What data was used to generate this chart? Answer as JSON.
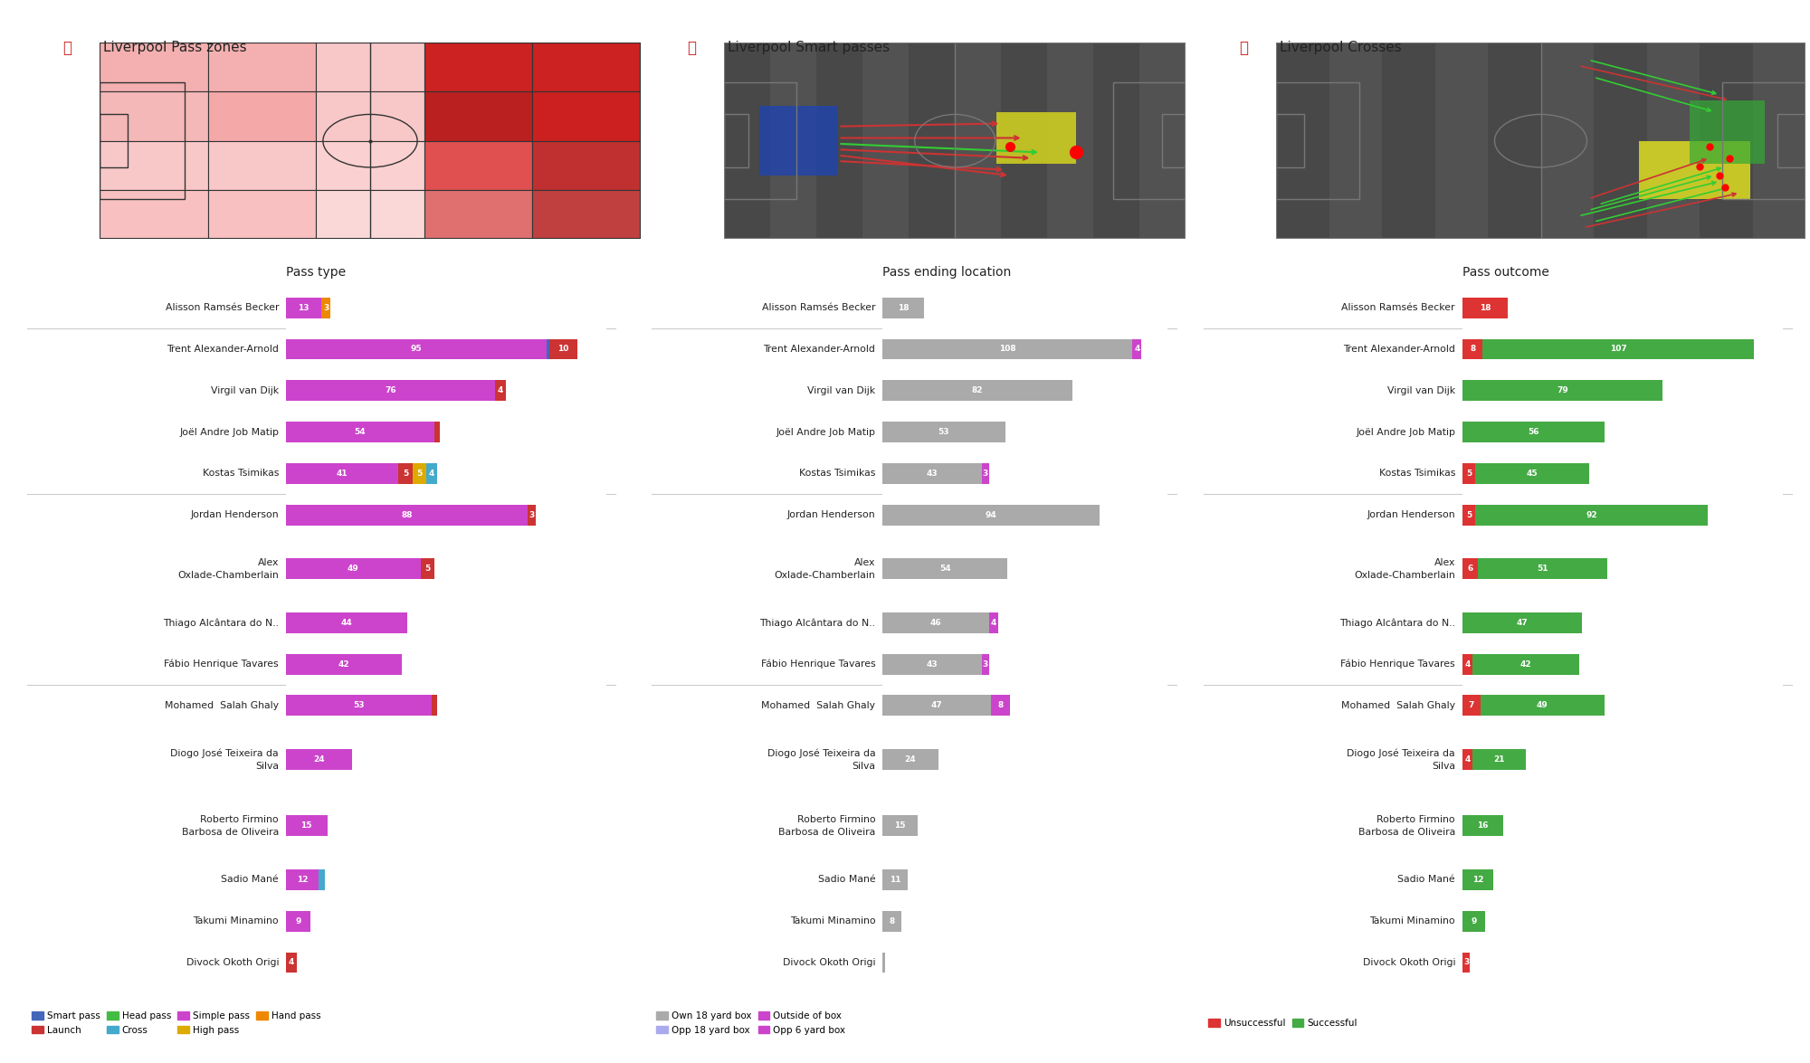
{
  "title1": "Liverpool Pass zones",
  "title2": "Liverpool Smart passes",
  "title3": "Liverpool Crosses",
  "players": [
    "Alisson Ramsés Becker",
    "Trent Alexander-Arnold",
    "Virgil van Dijk",
    "Joël Andre Job Matip",
    "Kostas Tsimikas",
    "Jordan Henderson",
    "Alex\nOxlade-Chamberlain",
    "Thiago Alcântara do N..",
    "Fábio Henrique Tavares",
    "Mohamed  Salah Ghaly",
    "Diogo José Teixeira da\nSilva",
    "Roberto Firmino\nBarbosa de Oliveira",
    "Sadio Mané",
    "Takumi Minamino",
    "Divock Okoth Origi"
  ],
  "pt_simple": [
    13,
    95,
    76,
    54,
    41,
    88,
    49,
    44,
    42,
    53,
    24,
    15,
    12,
    9,
    0
  ],
  "pt_smart": [
    0,
    1,
    0,
    0,
    0,
    0,
    0,
    0,
    0,
    0,
    0,
    0,
    0,
    0,
    0
  ],
  "pt_launch": [
    0,
    10,
    4,
    2,
    5,
    3,
    5,
    0,
    0,
    2,
    0,
    0,
    0,
    0,
    4
  ],
  "pt_head": [
    0,
    0,
    0,
    0,
    0,
    0,
    0,
    0,
    0,
    0,
    0,
    0,
    0,
    0,
    0
  ],
  "pt_high": [
    0,
    0,
    0,
    0,
    5,
    0,
    0,
    0,
    0,
    0,
    0,
    0,
    0,
    0,
    0
  ],
  "pt_hand": [
    3,
    0,
    0,
    0,
    0,
    0,
    0,
    0,
    0,
    0,
    0,
    0,
    0,
    0,
    0
  ],
  "pt_cross": [
    0,
    0,
    0,
    0,
    4,
    0,
    0,
    0,
    0,
    0,
    0,
    0,
    2,
    0,
    0
  ],
  "pe_own18": [
    18,
    108,
    82,
    53,
    43,
    94,
    54,
    46,
    43,
    47,
    24,
    15,
    11,
    8,
    1
  ],
  "pe_outside": [
    0,
    4,
    0,
    0,
    3,
    0,
    0,
    4,
    3,
    8,
    0,
    0,
    0,
    0,
    0
  ],
  "pe_opp18": [
    0,
    0,
    0,
    0,
    0,
    0,
    0,
    0,
    0,
    0,
    0,
    0,
    0,
    0,
    0
  ],
  "pe_opp6": [
    0,
    0,
    0,
    0,
    0,
    0,
    0,
    0,
    0,
    0,
    0,
    0,
    0,
    0,
    0
  ],
  "po_unsuccess": [
    18,
    8,
    0,
    0,
    5,
    5,
    6,
    0,
    4,
    7,
    4,
    0,
    0,
    0,
    3
  ],
  "po_success": [
    0,
    107,
    79,
    56,
    45,
    92,
    51,
    47,
    42,
    49,
    21,
    16,
    12,
    9,
    0
  ],
  "section_dividers": [
    1,
    5,
    9
  ],
  "C_SIMPLE": "#cc44cc",
  "C_SMART": "#4466bb",
  "C_LAUNCH": "#cc3333",
  "C_HEAD": "#44bb44",
  "C_HIGH": "#ddaa00",
  "C_HAND": "#ee8800",
  "C_CROSS": "#44aacc",
  "C_OWN18": "#aaaaaa",
  "C_OUTSIDE": "#cc44cc",
  "C_OPP18": "#aaaaee",
  "C_OPP6": "#cc44cc",
  "C_UNSUCCESS": "#dd3333",
  "C_SUCCESS": "#44aa44",
  "bg_color": "#ffffff",
  "text_color": "#222222"
}
